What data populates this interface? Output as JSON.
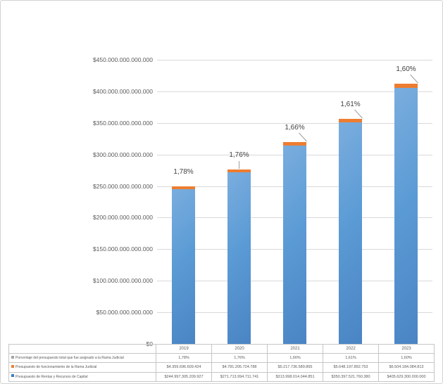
{
  "chart_data": {
    "type": "bar",
    "stacked": true,
    "title": "",
    "categories": [
      "2019",
      "2020",
      "2021",
      "2022",
      "2023"
    ],
    "series": [
      {
        "name": "Presupuesto de Rentas y Recursos de Capital",
        "color": "#3a7cc4",
        "values": [
          244997305209927,
          271713994711741,
          313998014044851,
          350397521760380,
          405629300000000
        ],
        "display_values": [
          "$244.997.305.209.927",
          "$271.713.994.711.741",
          "$313.998.014.044.851",
          "$350.397.521.760.380",
          "$405.629.300.000.000"
        ]
      },
      {
        "name": "Presupuesto de funcionamiento de la Rama Judicial",
        "color": "#ed7d31",
        "values": [
          4359696609424,
          4781205724788,
          5217736589865,
          5648197892753,
          6504184084813
        ],
        "display_values": [
          "$4.359.696.609.424",
          "$4.781.205.724.788",
          "$5.217.736.589.865",
          "$5.648.197.892.753",
          "$6.504.184.084.813"
        ]
      }
    ],
    "percent_series": {
      "name": "Porcentaje del presupuesto total que fue asignado a la Rama Judicial",
      "color": "#a5a5a5",
      "display_values": [
        "1,78%",
        "1,76%",
        "1,66%",
        "1,61%",
        "1,60%"
      ]
    },
    "ylim": [
      0,
      450000000000000
    ],
    "ytick_step": 50000000000000,
    "ytick_labels_bottom_to_top": [
      "$0",
      "$50.000.000.000.000",
      "$100.000.000.000.000",
      "$150.000.000.000.000",
      "$200.000.000.000.000",
      "$250.000.000.000.000",
      "$300.000.000.000.000",
      "$350.000.000.000.000",
      "$400.000.000.000.000",
      "$450.000.000.000.000"
    ],
    "grid": true,
    "legend_position": "data-table-left"
  },
  "table": {
    "header": [
      "2019",
      "2020",
      "2021",
      "2022",
      "2023"
    ],
    "rows": [
      {
        "key_color": "#a5a5a5",
        "label": "Porcentaje del presupuesto total que fue asignado a la Rama Judicial",
        "values": [
          "1,78%",
          "1,76%",
          "1,66%",
          "1,61%",
          "1,60%"
        ]
      },
      {
        "key_color": "#ed7d31",
        "label": "Presupuesto de funcionamiento de la Rama Judicial",
        "values": [
          "$4.359.696.609.424",
          "$4.781.205.724.788",
          "$5.217.736.589.865",
          "$5.648.197.892.753",
          "$6.504.184.084.813"
        ]
      },
      {
        "key_color": "#3a7cc4",
        "label": "Presupuesto de Rentas y Recursos de Capital",
        "values": [
          "$244.997.305.209.927",
          "$271.713.994.711.741",
          "$313.998.014.044.851",
          "$350.397.521.760.380",
          "$405.629.300.000.000"
        ]
      }
    ]
  },
  "colors": {
    "bar_blue": "#5b9bd5",
    "bar_orange": "#ed7d31",
    "legend_gray": "#a5a5a5",
    "gridline": "#d9d9d9",
    "axis_text": "#595959",
    "leader_line": "#9e9e9e",
    "table_border": "#c6c6c6",
    "outer_border": "#d3d3d3"
  }
}
